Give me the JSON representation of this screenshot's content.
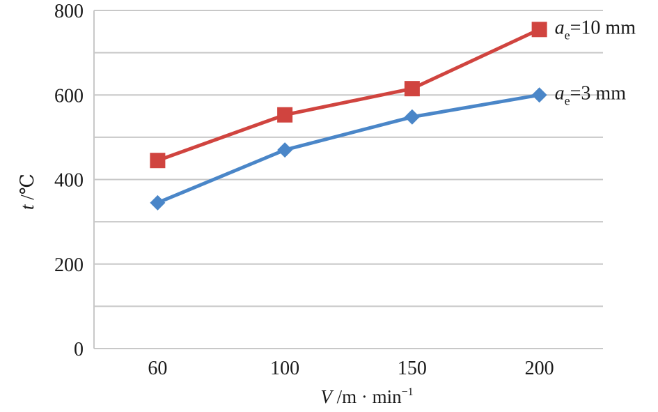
{
  "chart_data": {
    "type": "line",
    "categories": [
      "60",
      "100",
      "150",
      "200"
    ],
    "series": [
      {
        "label_var": "a",
        "label_sub": "e",
        "label_rest": "=10 mm",
        "values": [
          445,
          553,
          615,
          755
        ],
        "color": "#d0443f",
        "marker": "square"
      },
      {
        "label_var": "a",
        "label_sub": "e",
        "label_rest": "=3 mm",
        "values": [
          345,
          470,
          548,
          600
        ],
        "color": "#4a86c8",
        "marker": "diamond"
      }
    ],
    "ylim": [
      0,
      800
    ],
    "y_ticks": [
      "0",
      "200",
      "400",
      "600",
      "800"
    ],
    "grid": true,
    "ylabel": {
      "var": "t",
      "rest": " /℃"
    },
    "xlabel": {
      "var": "V",
      "rest": " /m · min",
      "sup": "−1"
    }
  }
}
